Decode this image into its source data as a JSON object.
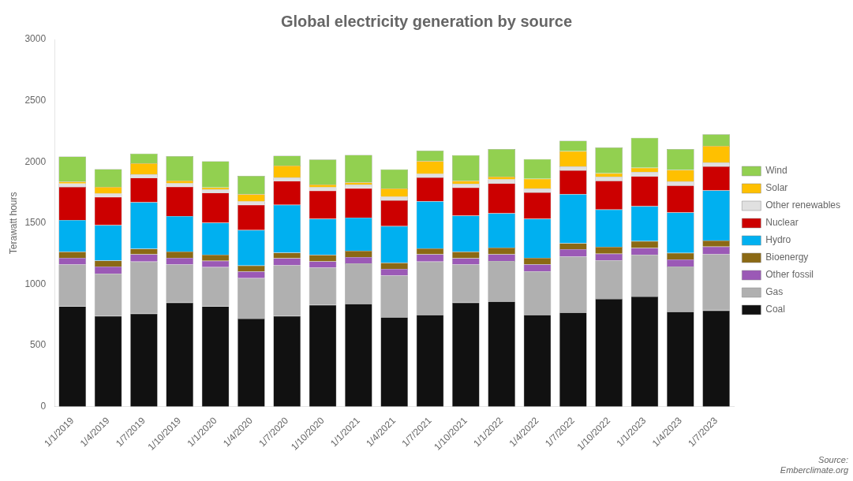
{
  "chart_data": {
    "type": "bar",
    "stacked": true,
    "title": "Global electricity generation by source",
    "ylabel": "Terawatt hours",
    "annotations": [
      "Source:\nEmberclimate.org"
    ],
    "categories": [
      "1/1/2019",
      "1/4/2019",
      "1/7/2019",
      "1/10/2019",
      "1/1/2020",
      "1/4/2020",
      "1/7/2020",
      "1/10/2020",
      "1/1/2021",
      "1/4/2021",
      "1/7/2021",
      "1/10/2021",
      "1/1/2022",
      "1/4/2022",
      "1/7/2022",
      "1/10/2022",
      "1/1/2023",
      "1/4/2023",
      "1/7/2023"
    ],
    "series": [
      {
        "name": "Coal",
        "color": "#111111",
        "values": [
          820,
          740,
          760,
          850,
          820,
          720,
          740,
          830,
          840,
          730,
          750,
          850,
          860,
          750,
          770,
          880,
          900,
          775,
          785
        ]
      },
      {
        "name": "Gas",
        "color": "#b0b0b0",
        "values": [
          340,
          345,
          425,
          310,
          320,
          330,
          415,
          305,
          330,
          340,
          435,
          310,
          330,
          355,
          455,
          315,
          340,
          370,
          460
        ]
      },
      {
        "name": "Other fossil",
        "color": "#9b59b6",
        "values": [
          55,
          60,
          60,
          55,
          52,
          55,
          58,
          52,
          52,
          55,
          60,
          52,
          55,
          58,
          62,
          55,
          56,
          58,
          62
        ]
      },
      {
        "name": "Bioenergy",
        "color": "#8B6914",
        "values": [
          50,
          48,
          45,
          52,
          50,
          48,
          45,
          52,
          52,
          50,
          47,
          53,
          55,
          52,
          48,
          55,
          57,
          53,
          50
        ]
      },
      {
        "name": "Hydro",
        "color": "#00b0f0",
        "values": [
          260,
          290,
          380,
          290,
          260,
          290,
          390,
          295,
          270,
          300,
          385,
          295,
          280,
          320,
          400,
          305,
          285,
          330,
          410
        ]
      },
      {
        "name": "Nuclear",
        "color": "#cc0000",
        "values": [
          270,
          230,
          200,
          240,
          245,
          205,
          195,
          230,
          240,
          210,
          195,
          230,
          245,
          215,
          195,
          235,
          245,
          220,
          195
        ]
      },
      {
        "name": "Other renewables",
        "color": "#e0e0e0",
        "values": [
          28,
          28,
          28,
          28,
          28,
          28,
          28,
          28,
          30,
          30,
          30,
          30,
          32,
          32,
          32,
          32,
          33,
          33,
          33
        ]
      },
      {
        "name": "Solar",
        "color": "#ffc000",
        "values": [
          15,
          55,
          90,
          22,
          15,
          60,
          98,
          22,
          18,
          68,
          105,
          25,
          22,
          80,
          125,
          30,
          35,
          95,
          135
        ]
      },
      {
        "name": "Wind",
        "color": "#92d050",
        "values": [
          205,
          145,
          80,
          200,
          215,
          150,
          80,
          205,
          225,
          155,
          85,
          210,
          225,
          160,
          85,
          210,
          245,
          170,
          95
        ]
      }
    ],
    "ylim": [
      0,
      3000
    ],
    "yticks": [
      0,
      500,
      1000,
      1500,
      2000,
      2500,
      3000
    ],
    "grid": false,
    "legend": "right"
  }
}
